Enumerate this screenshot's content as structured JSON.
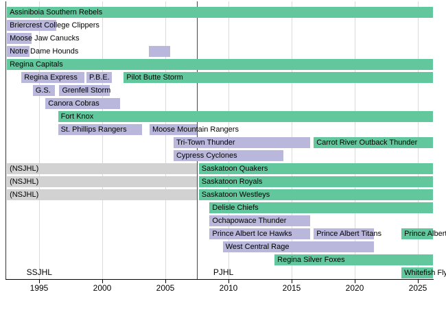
{
  "chart_data": {
    "type": "timeline",
    "title": "",
    "x_axis": {
      "ticks": [
        1995,
        2000,
        2005,
        2010,
        2015,
        2020,
        2025
      ],
      "domain": [
        1992.35,
        2026.3
      ]
    },
    "separator_year": 2007.5,
    "leagues": [
      {
        "label": "SSJHL",
        "year": 1994.0
      },
      {
        "label": "PJHL",
        "year": 2008.8
      }
    ],
    "colors": {
      "green": "#62C79C",
      "purple": "#B9B7DB",
      "gray": "#D2D2D2",
      "gridline": "#FFC9D1",
      "separator": "#444444",
      "border": "#333333",
      "axis": "#000000"
    },
    "rows": [
      {
        "segments": [
          {
            "label": "Assiniboia Southern Rebels",
            "color": "green",
            "start": 1992.45,
            "end": 2026.2
          }
        ]
      },
      {
        "segments": [
          {
            "label": "Briercrest College Clippers",
            "color": "purple",
            "start": 1992.45,
            "end": 1996.35
          }
        ]
      },
      {
        "segments": [
          {
            "label": "Moose Jaw Canucks",
            "color": "purple",
            "start": 1992.45,
            "end": 1994.4
          }
        ]
      },
      {
        "segments": [
          {
            "label": "Notre Dame Hounds",
            "color": "purple",
            "start": 1992.45,
            "end": 1994.25
          },
          {
            "label": "",
            "color": "purple",
            "start": 2003.7,
            "end": 2005.4
          }
        ]
      },
      {
        "segments": [
          {
            "label": "Regina Capitals",
            "color": "green",
            "start": 1992.45,
            "end": 2026.2
          }
        ]
      },
      {
        "segments": [
          {
            "label": "Regina Express",
            "color": "purple",
            "start": 1993.6,
            "end": 1998.6
          },
          {
            "label": "P.B.E.",
            "color": "purple",
            "start": 1998.75,
            "end": 2000.75
          },
          {
            "label": "Pilot Butte Storm",
            "color": "green",
            "start": 2001.7,
            "end": 2026.2
          }
        ]
      },
      {
        "segments": [
          {
            "label": "G.S.",
            "color": "purple",
            "start": 1994.5,
            "end": 1996.25
          },
          {
            "label": "Grenfell Storm",
            "color": "purple",
            "start": 1996.6,
            "end": 2000.6
          }
        ]
      },
      {
        "segments": [
          {
            "label": "Canora Cobras",
            "color": "purple",
            "start": 1995.5,
            "end": 2001.4
          }
        ]
      },
      {
        "segments": [
          {
            "label": "Fort Knox",
            "color": "green",
            "start": 1996.5,
            "end": 2026.2
          }
        ]
      },
      {
        "segments": [
          {
            "label": "St. Phillips Rangers",
            "color": "purple",
            "start": 1996.5,
            "end": 2003.15
          },
          {
            "label": "Moose Mountain Rangers",
            "color": "purple",
            "start": 2003.75,
            "end": 2007.5
          }
        ]
      },
      {
        "segments": [
          {
            "label": "Tri-Town Thunder",
            "color": "purple",
            "start": 2005.65,
            "end": 2016.45
          },
          {
            "label": "Carrot River Outback Thunder",
            "color": "green",
            "start": 2016.75,
            "end": 2026.2
          }
        ]
      },
      {
        "segments": [
          {
            "label": "Cypress Cyclones",
            "color": "purple",
            "start": 2005.65,
            "end": 2014.35
          }
        ]
      },
      {
        "segments": [
          {
            "label": "(NSJHL)",
            "color": "gray",
            "start": 1992.45,
            "end": 2007.5
          },
          {
            "label": "Saskatoon Quakers",
            "color": "green",
            "start": 2007.65,
            "end": 2026.2
          }
        ]
      },
      {
        "segments": [
          {
            "label": "(NSJHL)",
            "color": "gray",
            "start": 1992.45,
            "end": 2007.5
          },
          {
            "label": "Saskatoon Royals",
            "color": "green",
            "start": 2007.65,
            "end": 2026.2
          }
        ]
      },
      {
        "segments": [
          {
            "label": "(NSJHL)",
            "color": "gray",
            "start": 1992.45,
            "end": 2007.5
          },
          {
            "label": "Saskatoon Westleys",
            "color": "green",
            "start": 2007.65,
            "end": 2026.2
          }
        ]
      },
      {
        "segments": [
          {
            "label": "Delisle Chiefs",
            "color": "green",
            "start": 2008.5,
            "end": 2026.2
          }
        ]
      },
      {
        "segments": [
          {
            "label": "Ochapowace Thunder",
            "color": "purple",
            "start": 2008.5,
            "end": 2016.45
          }
        ]
      },
      {
        "segments": [
          {
            "label": "Prince Albert Ice Hawks",
            "color": "purple",
            "start": 2008.5,
            "end": 2016.45
          },
          {
            "label": "Prince Albert Titans",
            "color": "purple",
            "start": 2016.75,
            "end": 2021.5
          },
          {
            "label": "Prince Albert",
            "color": "green",
            "start": 2023.7,
            "end": 2026.2
          }
        ]
      },
      {
        "segments": [
          {
            "label": "West Central Rage",
            "color": "purple",
            "start": 2009.55,
            "end": 2021.5
          }
        ]
      },
      {
        "segments": [
          {
            "label": "Regina Silver Foxes",
            "color": "green",
            "start": 2013.65,
            "end": 2026.2
          }
        ]
      },
      {
        "segments": [
          {
            "label": "Whitefish Fly",
            "color": "green",
            "start": 2023.7,
            "end": 2026.2
          }
        ]
      }
    ]
  }
}
